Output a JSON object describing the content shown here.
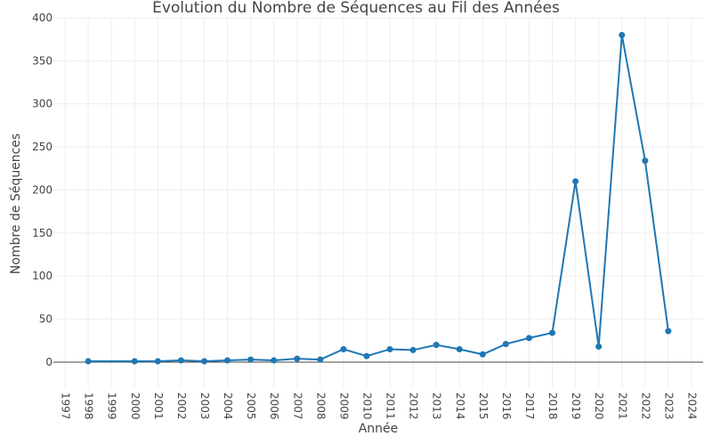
{
  "chart_data": {
    "type": "line",
    "title": "Évolution du Nombre de Séquences au Fil des Années",
    "xlabel": "Année",
    "ylabel": "Nombre de Séquences",
    "xlim": [
      1996.5,
      2024.5
    ],
    "ylim": [
      -30,
      400
    ],
    "x_ticks": [
      1997,
      1998,
      1999,
      2000,
      2001,
      2002,
      2003,
      2004,
      2005,
      2006,
      2007,
      2008,
      2009,
      2010,
      2011,
      2012,
      2013,
      2014,
      2015,
      2016,
      2017,
      2018,
      2019,
      2020,
      2021,
      2022,
      2023,
      2024
    ],
    "y_ticks": [
      0,
      50,
      100,
      150,
      200,
      250,
      300,
      350,
      400
    ],
    "grid": true,
    "color": "#1f77b4",
    "series": [
      {
        "x": [
          1998,
          2000,
          2001,
          2002,
          2003,
          2004,
          2005,
          2006,
          2007,
          2008,
          2009,
          2010,
          2011,
          2012,
          2013,
          2014,
          2015,
          2016,
          2017,
          2018,
          2019,
          2020,
          2021,
          2022,
          2023
        ],
        "values": [
          1,
          1,
          1,
          2,
          1,
          2,
          3,
          2,
          4,
          3,
          15,
          7,
          15,
          14,
          20,
          15,
          9,
          21,
          28,
          34,
          210,
          18,
          380,
          234,
          36
        ]
      }
    ]
  }
}
